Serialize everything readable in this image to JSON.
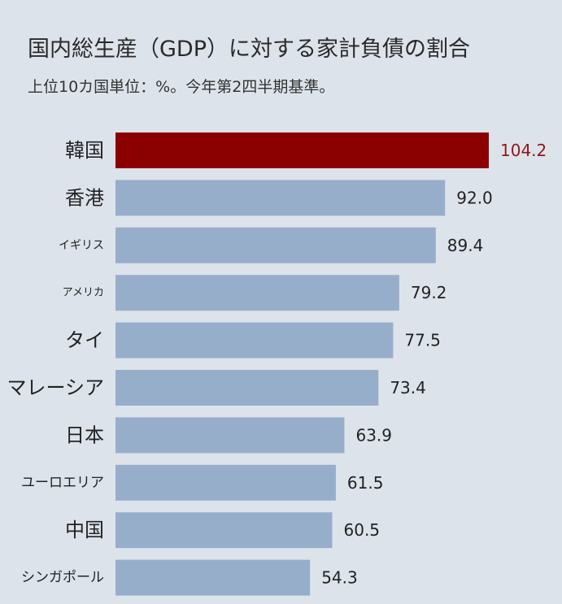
{
  "chart_data": {
    "type": "bar",
    "orientation": "horizontal",
    "title": "国内総生産（GDP）に対する家計負債の割合",
    "subtitle": "上位10カ国単位：%。今年第2四半期基準。",
    "categories": [
      "韓国",
      "香港",
      "イギリス",
      "アメリカ",
      "タイ",
      "マレーシア",
      "日本",
      "ユーロエリア",
      "中国",
      "シンガポール"
    ],
    "values": [
      104.2,
      92.0,
      89.4,
      79.2,
      77.5,
      73.4,
      63.9,
      61.5,
      60.5,
      54.3
    ],
    "value_labels": [
      "104.2",
      "92.0",
      "89.4",
      "79.2",
      "77.5",
      "73.4",
      "63.9",
      "61.5",
      "60.5",
      "54.3"
    ],
    "highlight_index": 0,
    "colors": {
      "highlight": "#8b0000",
      "bar": "#97aecb",
      "highlight_label": "#8b1a1a",
      "label": "#222222"
    },
    "xlim": [
      0,
      104.2
    ],
    "grid": false,
    "legend": "none"
  }
}
